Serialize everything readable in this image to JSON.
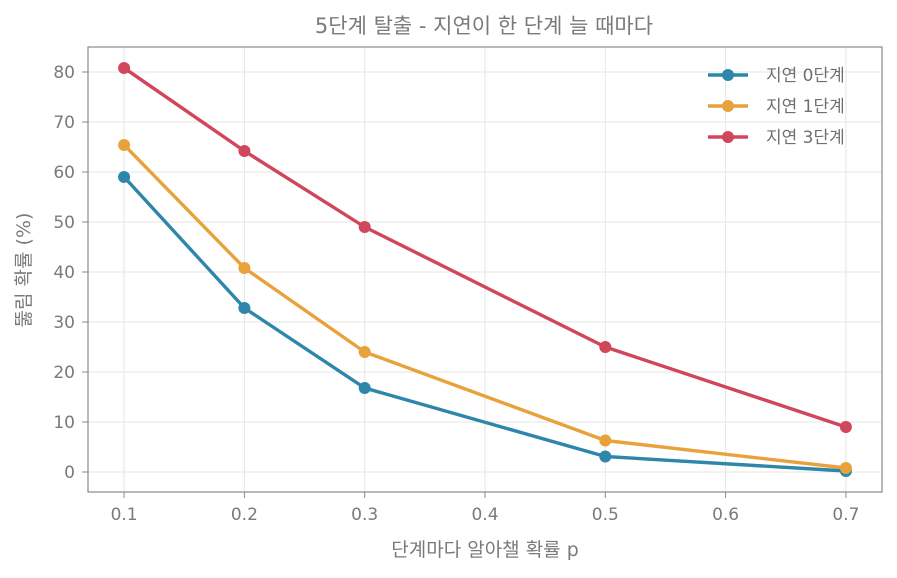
{
  "chart_data": {
    "type": "line",
    "title": "5단계 탈출 - 지연이 한 단계 늘 때마다",
    "xlabel": "단계마다 알아챌 확률 p",
    "ylabel": "뚫림 확률 (%)",
    "xlim": [
      0.07,
      0.73
    ],
    "ylim": [
      -4,
      85
    ],
    "xticks": [
      0.1,
      0.2,
      0.3,
      0.4,
      0.5,
      0.6,
      0.7
    ],
    "xtick_labels": [
      "0.1",
      "0.2",
      "0.3",
      "0.4",
      "0.5",
      "0.6",
      "0.7"
    ],
    "yticks": [
      0,
      10,
      20,
      30,
      40,
      50,
      60,
      70,
      80
    ],
    "ytick_labels": [
      "0",
      "10",
      "20",
      "30",
      "40",
      "50",
      "60",
      "70",
      "80"
    ],
    "grid": true,
    "legend_position": "top-right",
    "x": [
      0.1,
      0.2,
      0.3,
      0.5,
      0.7
    ],
    "series": [
      {
        "name": "지연 0단계",
        "color": "#2e86ab",
        "values": [
          59.0,
          32.8,
          16.8,
          3.1,
          0.2
        ]
      },
      {
        "name": "지연 1단계",
        "color": "#e9a23b",
        "values": [
          65.4,
          40.8,
          24.0,
          6.3,
          0.8
        ]
      },
      {
        "name": "지연 3단계",
        "color": "#d0465a",
        "values": [
          80.8,
          64.2,
          49.0,
          25.0,
          9.0
        ]
      }
    ]
  }
}
